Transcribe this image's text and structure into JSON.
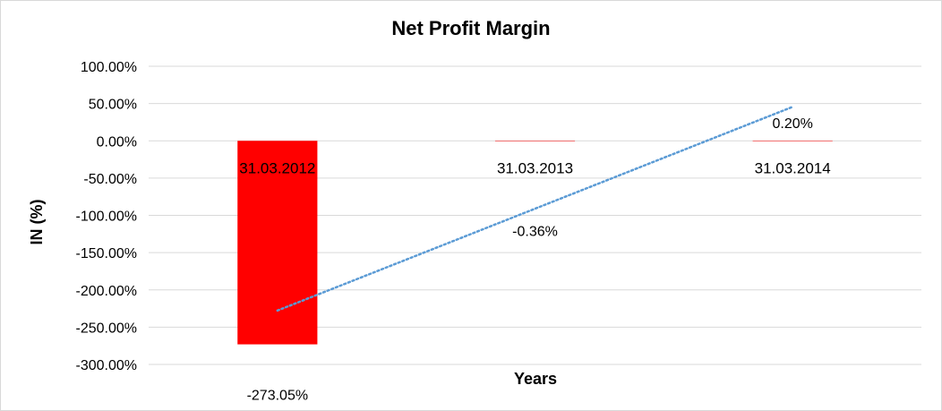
{
  "chart_data": {
    "type": "bar",
    "title": "Net Profit Margin",
    "xlabel": "Years",
    "ylabel": "IN (%)",
    "categories": [
      "31.03.2012",
      "31.03.2013",
      "31.03.2014"
    ],
    "values": [
      -273.05,
      -0.36,
      0.2
    ],
    "data_labels": [
      "-273.05%",
      "-0.36%",
      "0.20%"
    ],
    "yticks": [
      "100.00%",
      "50.00%",
      "0.00%",
      "-50.00%",
      "-100.00%",
      "-150.00%",
      "-200.00%",
      "-250.00%",
      "-300.00%"
    ],
    "ylim": [
      -300,
      100
    ],
    "ytick_step": 50,
    "grid": true,
    "trendline": {
      "type": "linear",
      "color": "#5b9bd5",
      "style": "dotted"
    },
    "colors": {
      "bar": "#ff0000",
      "grid": "#d9d9d9",
      "trendline": "#5b9bd5"
    }
  }
}
